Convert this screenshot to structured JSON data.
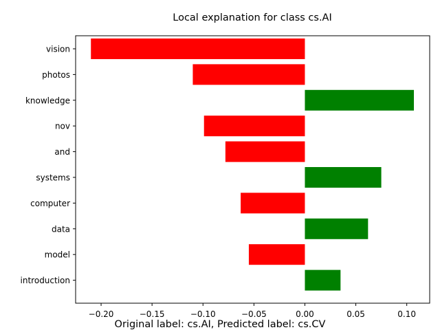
{
  "chart_data": {
    "type": "bar",
    "orientation": "horizontal",
    "title": "Local explanation for class cs.AI",
    "footnote": "Original label: cs.AI, Predicted label: cs.CV",
    "categories": [
      "vision",
      "photos",
      "knowledge",
      "nov",
      "and",
      "systems",
      "computer",
      "data",
      "model",
      "introduction"
    ],
    "values": [
      -0.21,
      -0.11,
      0.107,
      -0.099,
      -0.078,
      0.075,
      -0.063,
      0.062,
      -0.055,
      0.035
    ],
    "xlim": [
      -0.225,
      0.1225
    ],
    "xticks": [
      -0.2,
      -0.15,
      -0.1,
      -0.05,
      0.0,
      0.05,
      0.1
    ],
    "xtick_labels": [
      "−0.20",
      "−0.15",
      "−0.10",
      "−0.05",
      "0.00",
      "0.05",
      "0.10"
    ],
    "grid": false,
    "colors": {
      "positive": "#008000",
      "negative": "#ff0000"
    }
  }
}
